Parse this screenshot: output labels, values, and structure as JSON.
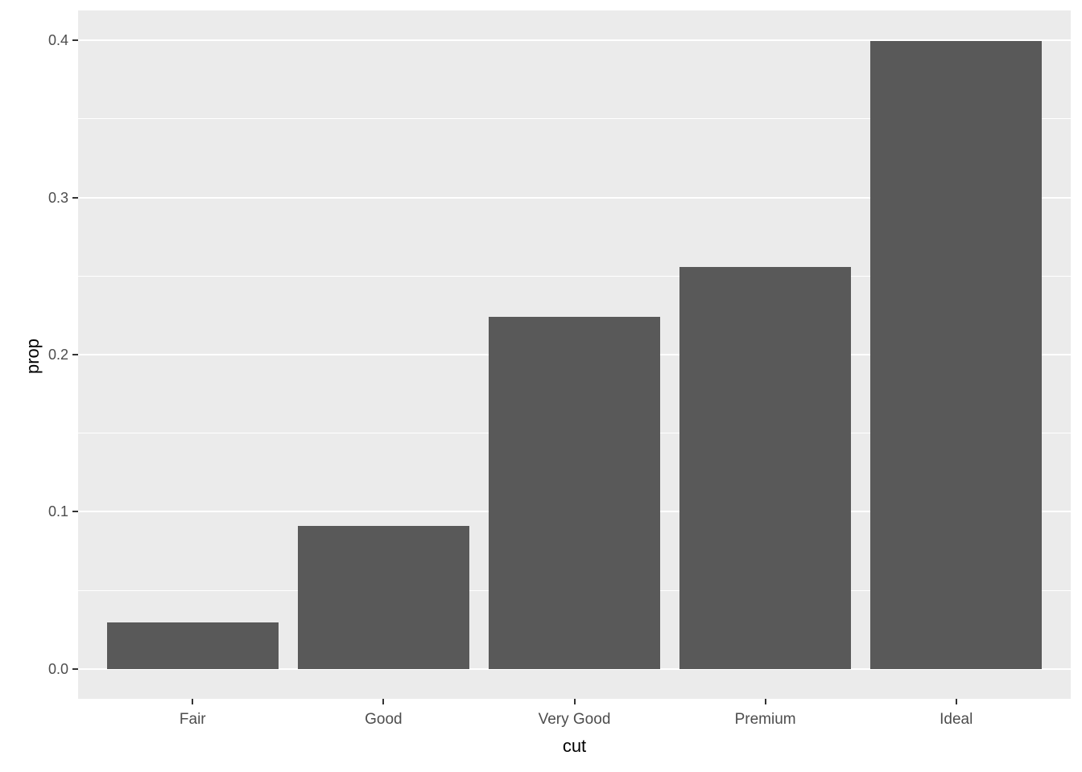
{
  "chart_data": {
    "type": "bar",
    "categories": [
      "Fair",
      "Good",
      "Very Good",
      "Premium",
      "Ideal"
    ],
    "values": [
      0.0298,
      0.091,
      0.224,
      0.2557,
      0.3995
    ],
    "title": "",
    "xlabel": "cut",
    "ylabel": "prop",
    "ylim": [
      -0.019,
      0.419
    ],
    "yticks": [
      0.0,
      0.1,
      0.2,
      0.3,
      0.4
    ],
    "ytick_labels": [
      "0.0",
      "0.1",
      "0.2",
      "0.3",
      "0.4"
    ],
    "minor_yticks": [
      0.05,
      0.15,
      0.25,
      0.35
    ],
    "grid": true,
    "legend": "none",
    "bar_color": "#595959",
    "panel_background": "#EBEBEB",
    "gridline_color": "#FFFFFF",
    "tick_label_color": "#4D4D4D",
    "axis_title_color": "#000000",
    "tick_mark_color": "#333333"
  }
}
